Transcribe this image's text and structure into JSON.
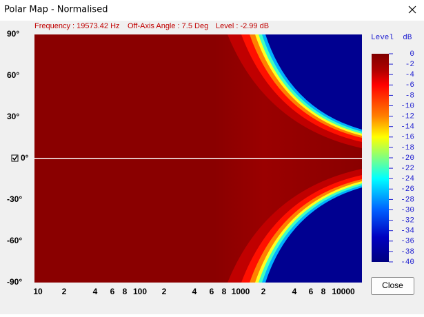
{
  "window": {
    "title": "Polar Map - Normalised"
  },
  "info": [
    "Frequency : 19573.42 Hz",
    "Off-Axis Angle : 7.5 Deg",
    "Level : -2.99 dB"
  ],
  "y_labels": [
    "90°",
    "60°",
    "30°",
    "0°",
    "-30°",
    "-60°",
    "-90°"
  ],
  "x_labels": [
    "10",
    "2",
    "4",
    "6",
    "8",
    "100",
    "2",
    "4",
    "6",
    "8",
    "1000",
    "2",
    "4",
    "6",
    "8",
    "10000"
  ],
  "colorbar": {
    "title": "Level  dB",
    "labels": [
      "0",
      "-2",
      "-4",
      "-6",
      "-8",
      "-10",
      "-12",
      "-14",
      "-16",
      "-18",
      "-20",
      "-22",
      "-24",
      "-26",
      "-28",
      "-30",
      "-32",
      "-34",
      "-36",
      "-38",
      "-40"
    ]
  },
  "close_button": "Close"
}
